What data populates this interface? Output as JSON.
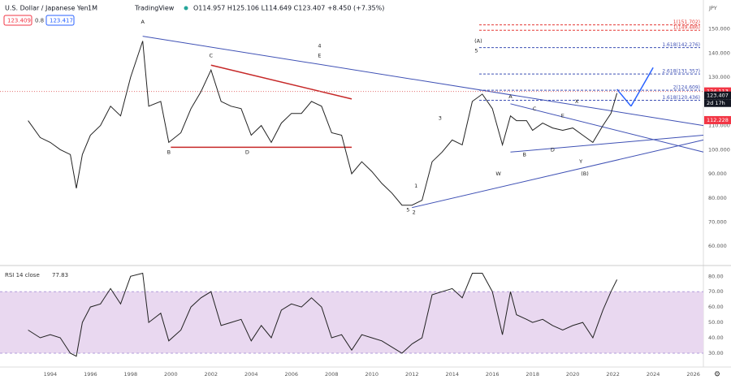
{
  "header": {
    "symbol": "U.S. Dollar / Japanese Yen",
    "interval": "1M",
    "source": "TradingView",
    "ohlc": "O114.957 H125.106 L114.649 C123.407 +8.450 (+7.35%)",
    "bid": "123.409",
    "spread": "0.8",
    "ask": "123.417",
    "currency": "JPY"
  },
  "chart_data": [
    {
      "type": "line",
      "x": [
        1992.9,
        1993.5,
        1994,
        1994.5,
        1995.0,
        1995.3,
        1995.6,
        1996,
        1996.5,
        1997,
        1997.5,
        1998,
        1998.6,
        1998.9,
        1999.5,
        1999.9,
        2000.5,
        2001,
        2001.5,
        2002,
        2002.5,
        2003,
        2003.5,
        2004,
        2004.5,
        2005,
        2005.5,
        2006,
        2006.5,
        2007,
        2007.5,
        2008,
        2008.5,
        2009,
        2009.5,
        2010,
        2010.5,
        2011,
        2011.5,
        2012,
        2012.5,
        2013,
        2013.5,
        2014,
        2014.5,
        2015,
        2015.5,
        2016,
        2016.5,
        2016.9,
        2017.2,
        2017.7,
        2018,
        2018.5,
        2019,
        2019.5,
        2020,
        2020.5,
        2021,
        2021.5,
        2021.9,
        2022.2
      ],
      "series": [
        {
          "name": "USDJPY",
          "color": "#222222",
          "values": [
            112,
            105,
            103,
            100,
            98,
            84,
            98,
            106,
            110,
            118,
            114,
            130,
            145,
            118,
            120,
            103,
            107,
            117,
            124,
            133,
            120,
            118,
            117,
            106,
            110,
            103,
            111,
            115,
            115,
            120,
            118,
            107,
            106,
            90,
            95,
            91,
            86,
            82,
            77,
            77,
            79,
            95,
            99,
            104,
            102,
            120,
            123,
            117,
            102,
            114,
            112,
            112,
            108,
            111,
            109,
            108,
            109,
            106,
            103,
            110,
            115,
            123.407
          ]
        }
      ],
      "xlim": [
        1991.5,
        2026.5
      ],
      "xticks": [
        1994,
        1996,
        1998,
        2000,
        2002,
        2004,
        2006,
        2008,
        2010,
        2012,
        2014,
        2016,
        2018,
        2020,
        2022,
        2024,
        2026
      ],
      "ylim": [
        52,
        162
      ],
      "yticks": [
        {
          "value": 60,
          "label": "60.000"
        },
        {
          "value": 70,
          "label": "70.000"
        },
        {
          "value": 80,
          "label": "80.000"
        },
        {
          "value": 90,
          "label": "90.000"
        },
        {
          "value": 100,
          "label": "100.000"
        },
        {
          "value": 110,
          "label": "110.000"
        },
        {
          "value": 120,
          "label": "120.000"
        },
        {
          "value": 130,
          "label": "130.000"
        },
        {
          "value": 140,
          "label": "140.000"
        },
        {
          "value": 150,
          "label": "150.000"
        }
      ],
      "fib_levels": [
        {
          "label": "1(151.702)",
          "value": 151.702
        },
        {
          "label": "1(149.486)",
          "value": 149.486
        },
        {
          "label": "1.618(142.276)",
          "value": 142.276
        },
        {
          "label": "2.618(131.357)",
          "value": 131.357
        },
        {
          "label": "2(124.609)",
          "value": 124.609
        },
        {
          "label": "1.618(120.436)",
          "value": 120.436
        }
      ],
      "price_tags": [
        {
          "label": "124.113",
          "value": 124.113
        },
        {
          "label": "123.407",
          "value": 123.407
        },
        {
          "label": "112.228",
          "value": 112.228
        }
      ],
      "countdown": "2d 17h",
      "annotations": [
        "A",
        "B",
        "C",
        "D",
        "4",
        "E",
        "(A)",
        "5",
        "A",
        "B",
        "C",
        "D",
        "E",
        "X",
        "Y",
        "(B)",
        "W",
        "1",
        "2",
        "3",
        "5"
      ]
    },
    {
      "type": "line",
      "title": "RSI 14 close",
      "last": "77.83",
      "x": [
        1992.9,
        1993.5,
        1994,
        1994.5,
        1995.0,
        1995.3,
        1995.6,
        1996,
        1996.5,
        1997,
        1997.5,
        1998,
        1998.6,
        1998.9,
        1999.5,
        1999.9,
        2000.5,
        2001,
        2001.5,
        2002,
        2002.5,
        2003,
        2003.5,
        2004,
        2004.5,
        2005,
        2005.5,
        2006,
        2006.5,
        2007,
        2007.5,
        2008,
        2008.5,
        2009,
        2009.5,
        2010,
        2010.5,
        2011,
        2011.5,
        2012,
        2012.5,
        2013,
        2013.5,
        2014,
        2014.5,
        2015,
        2015.5,
        2016,
        2016.5,
        2016.9,
        2017.2,
        2017.7,
        2018,
        2018.5,
        2019,
        2019.5,
        2020,
        2020.5,
        2021,
        2021.5,
        2021.9,
        2022.2
      ],
      "series": [
        {
          "name": "RSI",
          "color": "#222222",
          "values": [
            45,
            40,
            42,
            40,
            30,
            28,
            50,
            60,
            62,
            72,
            62,
            80,
            82,
            50,
            56,
            38,
            45,
            60,
            66,
            70,
            48,
            50,
            52,
            38,
            48,
            40,
            58,
            62,
            60,
            66,
            60,
            40,
            42,
            32,
            42,
            40,
            38,
            34,
            30,
            36,
            40,
            68,
            70,
            72,
            66,
            82,
            82,
            70,
            42,
            70,
            55,
            52,
            50,
            52,
            48,
            45,
            48,
            50,
            40,
            58,
            70,
            77.83
          ]
        }
      ],
      "band": [
        30,
        70
      ],
      "band_color": "#e9d8f0",
      "ylim": [
        21,
        87
      ],
      "yticks": [
        {
          "value": 30,
          "label": "30.00"
        },
        {
          "value": 40,
          "label": "40.00"
        },
        {
          "value": 50,
          "label": "50.00"
        },
        {
          "value": 60,
          "label": "60.00"
        },
        {
          "value": 70,
          "label": "70.00"
        },
        {
          "value": 80,
          "label": "80.00"
        }
      ]
    }
  ]
}
